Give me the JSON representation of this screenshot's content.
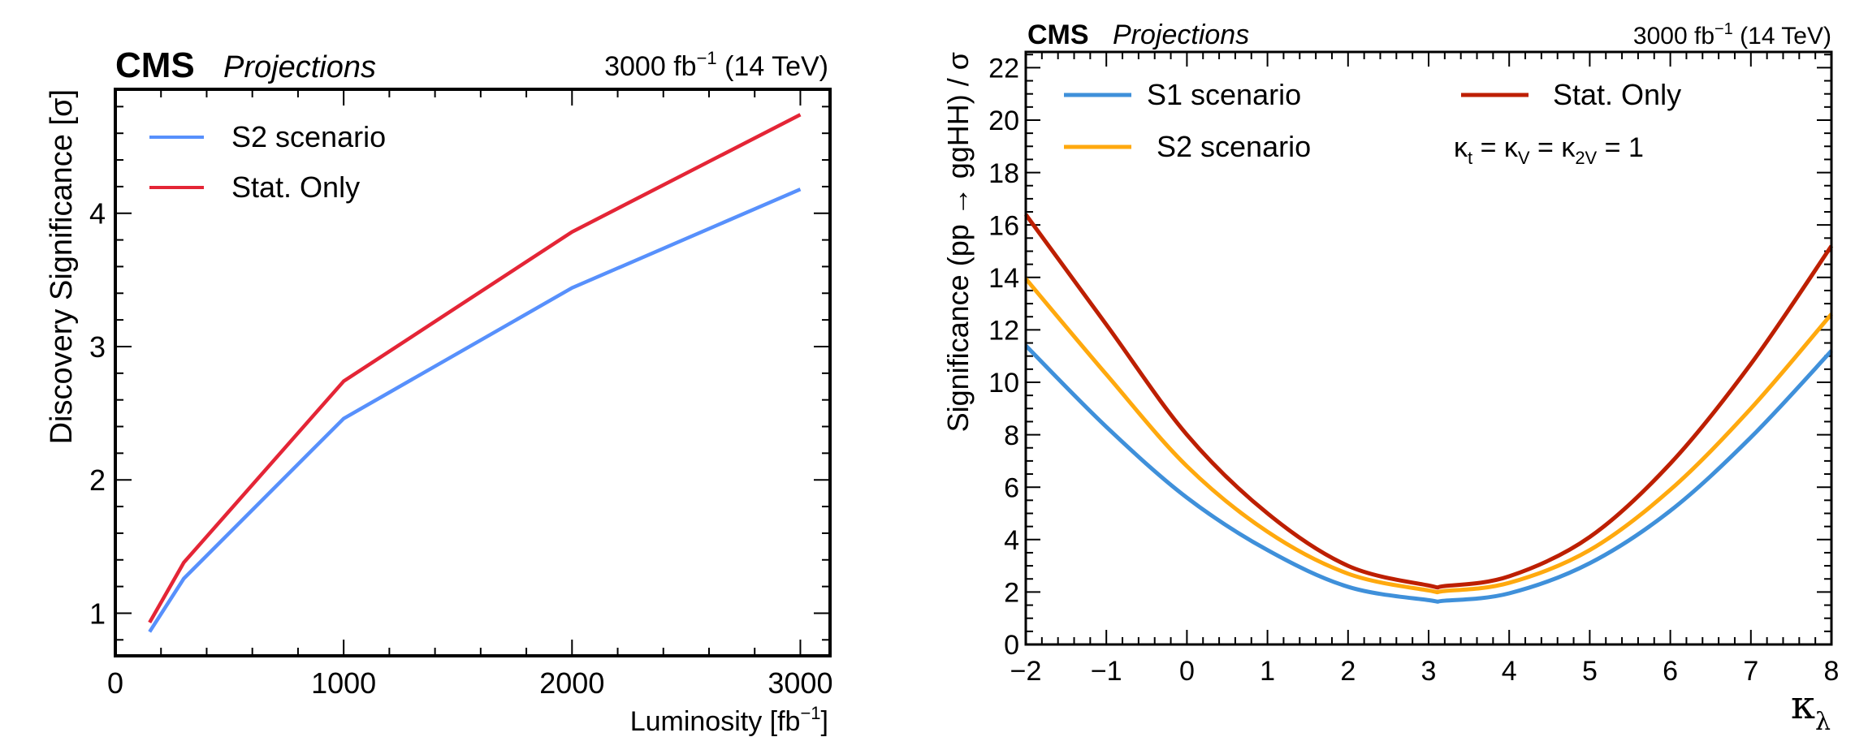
{
  "chart_data": [
    {
      "type": "line",
      "header": {
        "experiment": "CMS",
        "label": "Projections",
        "lumi_text": "3000 fb",
        "lumi_sup": "−1",
        "energy_text": "(14 TeV)"
      },
      "title": "",
      "xlabel": "Luminosity [fb",
      "xlabel_sup": "−1",
      "xlabel_close": "]",
      "ylabel": "Discovery Significance [σ]",
      "xlim": [
        0,
        3130
      ],
      "ylim": [
        0.68,
        4.93
      ],
      "xticks": [
        0,
        1000,
        2000,
        3000
      ],
      "xtick_labels": [
        "0",
        "1000",
        "2000",
        "3000"
      ],
      "xminor_step": 200,
      "yticks": [
        1,
        2,
        3,
        4
      ],
      "ytick_labels": [
        "1",
        "2",
        "3",
        "4"
      ],
      "yminor_step": 0.2,
      "grid": false,
      "legend_position": "top-left",
      "series": [
        {
          "name": "S2 scenario",
          "color": "#5790fc",
          "x": [
            150,
            300,
            1000,
            2000,
            3000
          ],
          "y": [
            0.86,
            1.26,
            2.46,
            3.44,
            4.18
          ]
        },
        {
          "name": "Stat. Only",
          "color": "#e42536",
          "x": [
            150,
            300,
            1000,
            2000,
            3000
          ],
          "y": [
            0.93,
            1.38,
            2.74,
            3.86,
            4.74
          ]
        }
      ]
    },
    {
      "type": "line",
      "header": {
        "experiment": "CMS",
        "label": "Projections",
        "lumi_text": "3000 fb",
        "lumi_sup": "−1",
        "energy_text": "(14 TeV)"
      },
      "title": "",
      "xlabel": "κ",
      "xlabel_sub": "λ",
      "ylabel": "Significance (pp  → ggHH) / σ",
      "xlim": [
        -2,
        8
      ],
      "ylim": [
        0,
        22.6
      ],
      "xticks": [
        -2,
        -1,
        0,
        1,
        2,
        3,
        4,
        5,
        6,
        7,
        8
      ],
      "xtick_labels": [
        "−2",
        "−1",
        "0",
        "1",
        "2",
        "3",
        "4",
        "5",
        "6",
        "7",
        "8"
      ],
      "xminor_step": 0.2,
      "yticks": [
        0,
        2,
        4,
        6,
        8,
        10,
        12,
        14,
        16,
        18,
        20,
        22
      ],
      "ytick_labels": [
        "0",
        "2",
        "4",
        "6",
        "8",
        "10",
        "12",
        "14",
        "16",
        "18",
        "20",
        "22"
      ],
      "yminor_step": 0.5,
      "grid": false,
      "legend_position": "top",
      "annotation": {
        "k": "κ",
        "sub_t": "t",
        "sub_v": "V",
        "sub_2v": "2V",
        "eq": " = ",
        "rhs": " = 1"
      },
      "series": [
        {
          "name": "S1 scenario",
          "color": "#3f90da",
          "x": [
            -2,
            -1,
            0,
            1,
            2,
            3,
            3.2,
            4,
            5,
            6,
            7,
            8
          ],
          "y": [
            11.4,
            8.3,
            5.6,
            3.6,
            2.2,
            1.69,
            1.67,
            1.95,
            3.1,
            5.1,
            7.9,
            11.2
          ]
        },
        {
          "name": "S2 scenario",
          "color": "#ffa90e",
          "x": [
            -2,
            -1,
            0,
            1,
            2,
            3,
            3.2,
            4,
            5,
            6,
            7,
            8
          ],
          "y": [
            13.95,
            10.3,
            6.8,
            4.3,
            2.7,
            2.06,
            2.04,
            2.35,
            3.6,
            5.9,
            9.0,
            12.6
          ]
        },
        {
          "name": "Stat. Only",
          "color": "#bd1f01",
          "x": [
            -2,
            -1,
            0,
            1,
            2,
            3,
            3.2,
            4,
            5,
            6,
            7,
            8
          ],
          "y": [
            16.4,
            12.2,
            8.0,
            5.0,
            3.0,
            2.25,
            2.23,
            2.6,
            4.1,
            6.9,
            10.7,
            15.2
          ]
        }
      ]
    }
  ]
}
